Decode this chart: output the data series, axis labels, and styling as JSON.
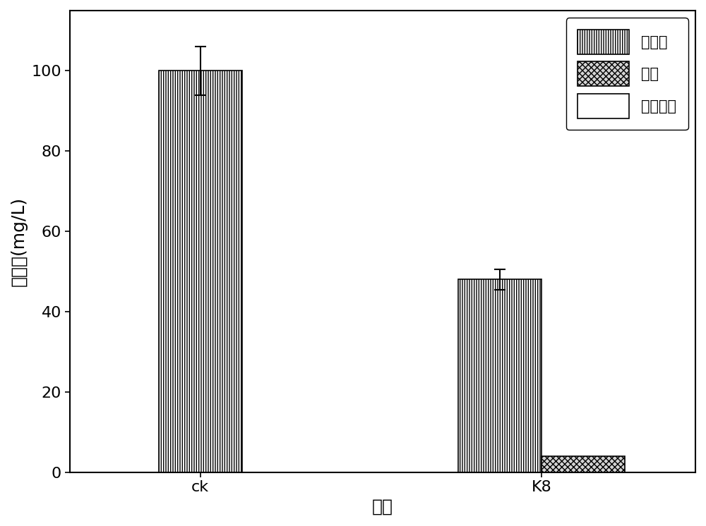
{
  "groups": [
    "ck",
    "K8"
  ],
  "series": [
    {
      "name": "确态氮",
      "values": [
        100.0,
        48.0
      ],
      "errors": [
        6.0,
        2.5
      ],
      "hatch": "|||||",
      "facecolor": "white",
      "edgecolor": "black"
    },
    {
      "name": "氨氮",
      "values": [
        0.0,
        4.0
      ],
      "errors": [
        0.0,
        0.0
      ],
      "hatch": "xxxx",
      "facecolor": "lightgray",
      "edgecolor": "black"
    },
    {
      "name": "亚确态氮",
      "values": [
        0.0,
        0.0
      ],
      "errors": [
        0.0,
        0.0
      ],
      "hatch": "",
      "facecolor": "white",
      "edgecolor": "black"
    }
  ],
  "ylabel": "氮含量(mg/L)",
  "xlabel": "处理",
  "ylim": [
    0,
    115
  ],
  "yticks": [
    0,
    20,
    40,
    60,
    80,
    100
  ],
  "bar_width": 0.32,
  "legend_loc": "upper right",
  "figsize": [
    10.0,
    7.46
  ],
  "dpi": 100,
  "label_fontsize": 18,
  "tick_fontsize": 16,
  "legend_fontsize": 15
}
